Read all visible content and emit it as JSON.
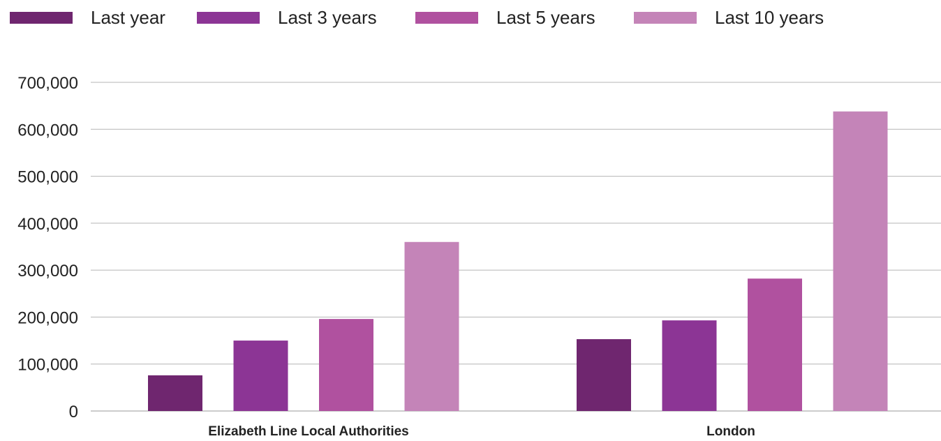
{
  "chart_data": {
    "type": "bar",
    "categories": [
      "Elizabeth Line Local Authorities",
      "London"
    ],
    "series": [
      {
        "name": "Last year",
        "color": "#6f266f",
        "values": [
          76000,
          153000
        ]
      },
      {
        "name": "Last 3 years",
        "color": "#8c3595",
        "values": [
          150000,
          193000
        ]
      },
      {
        "name": "Last 5 years",
        "color": "#b0519f",
        "values": [
          196000,
          282000
        ]
      },
      {
        "name": "Last 10 years",
        "color": "#c484b8",
        "values": [
          360000,
          638000
        ]
      }
    ],
    "ylim": [
      0,
      700000
    ],
    "yticks": [
      0,
      100000,
      200000,
      300000,
      400000,
      500000,
      600000,
      700000
    ],
    "ytick_labels": [
      "0",
      "100,000",
      "200,000",
      "300,000",
      "400,000",
      "500,000",
      "600,000",
      "700,000"
    ],
    "grid": true,
    "legend_position": "top-left",
    "title": "",
    "xlabel": "",
    "ylabel": ""
  }
}
